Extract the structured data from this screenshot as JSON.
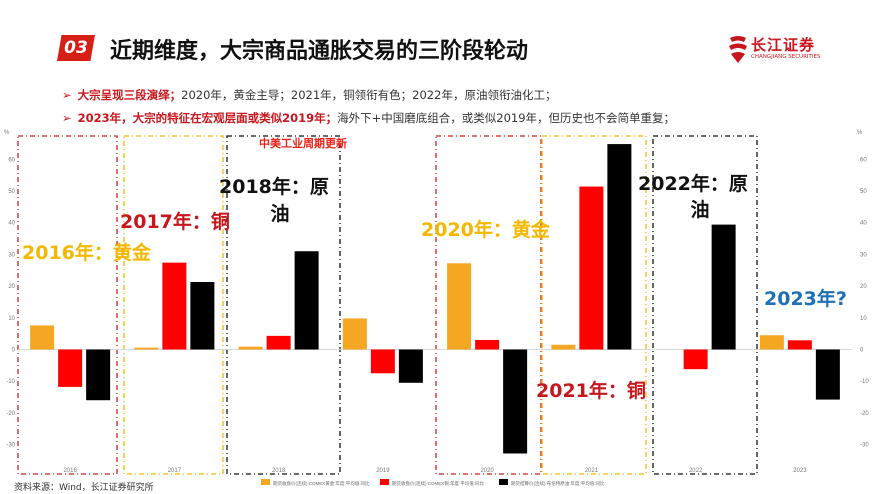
{
  "header": {
    "badge": "03",
    "title": "近期维度，大宗商品通胀交易的三阶段轮动",
    "logo_cn": "长江证券",
    "logo_en": "CHANGJIANG SECURITIES"
  },
  "bullets": [
    {
      "highlight": "大宗呈现三段演绎；",
      "text": "2020年，黄金主导；2021年，铜领衔有色；2022年，原油领衔油化工；"
    },
    {
      "highlight": "2023年，大宗的特征在宏观层面或类似2019年；",
      "text": "海外下+中国磨底组合，或类似2019年，但历史也不会简单重复；"
    }
  ],
  "source": "资料来源：Wind，长江证券研究所",
  "chart_data": {
    "type": "bar",
    "categories": [
      "2016",
      "2017",
      "2018",
      "2019",
      "2020",
      "2021",
      "2022",
      "2023"
    ],
    "series": [
      {
        "name": "期货收盘价(连续):COMEX黄金:年度:平均值:同比",
        "color": "#f5a623",
        "values": [
          7.6,
          0.6,
          0.9,
          9.8,
          27.2,
          1.5,
          null,
          4.5
        ]
      },
      {
        "name": "期货收盘价(连续):COMEX铜:年度:平均值:同比",
        "color": "#ff0000",
        "values": [
          -11.8,
          27.4,
          4.3,
          -7.5,
          3.0,
          51.4,
          -6.2,
          2.9
        ]
      },
      {
        "name": "期货结算价(连续):布伦特原油:年度:平均值:同比",
        "color": "#000000",
        "values": [
          -16.0,
          21.3,
          31.0,
          -10.5,
          -32.8,
          64.8,
          39.4,
          -15.8
        ]
      }
    ],
    "ylim": [
      -35,
      70
    ],
    "yticks_left": [
      -30,
      -20,
      -10,
      0,
      10,
      20,
      30,
      40,
      50,
      60
    ],
    "yticks_right": [
      -30,
      -20,
      -10,
      0,
      10,
      20,
      30,
      40,
      50,
      60
    ],
    "y_unit_left": "%",
    "y_unit_right": "%",
    "annotations": [
      {
        "text": "中美工业周期更新",
        "color": "#e8231b"
      },
      {
        "text": "2016年：黄金",
        "color": "#f5b800"
      },
      {
        "text": "2017年：铜",
        "color": "#c8161d"
      },
      {
        "text": "2018年：原",
        "color": "#111111"
      },
      {
        "text": "油",
        "color": "#111111"
      },
      {
        "text": "2020年：黄金",
        "color": "#f5b800"
      },
      {
        "text": "2021年：铜",
        "color": "#c8161d"
      },
      {
        "text": "2022年：原",
        "color": "#111111"
      },
      {
        "text": "油",
        "color": "#111111"
      },
      {
        "text": "2023年?",
        "color": "#1f6fb5"
      }
    ]
  }
}
